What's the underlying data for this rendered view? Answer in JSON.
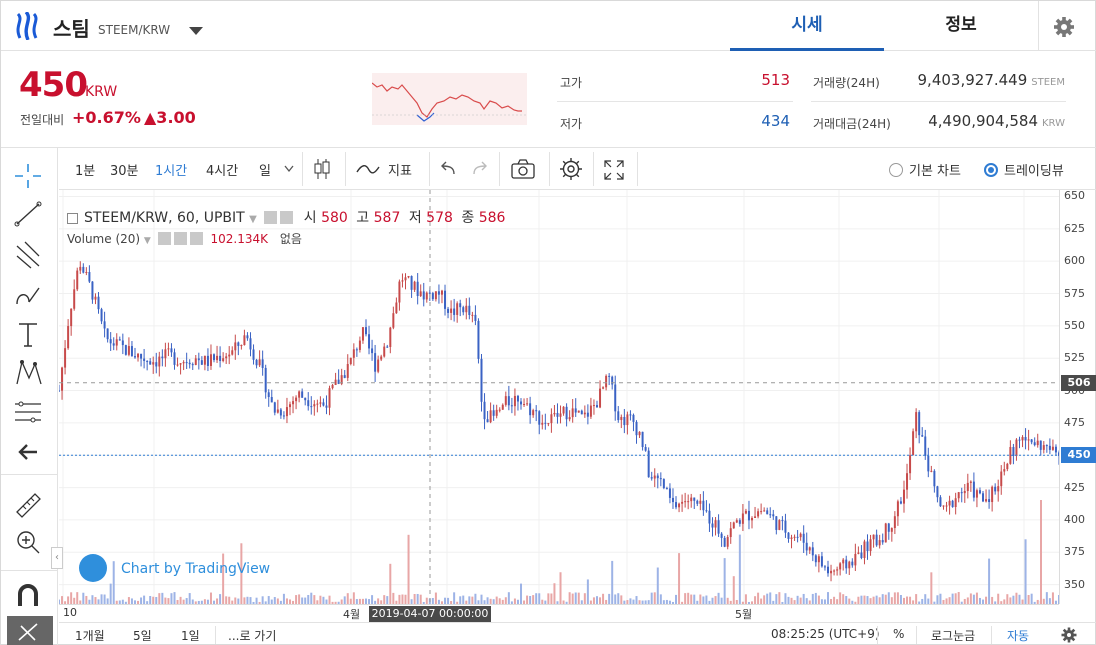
{
  "header": {
    "coin_name": "스팀",
    "pair": "STEEM/KRW",
    "tabs": [
      {
        "label": "시세",
        "active": true
      },
      {
        "label": "정보",
        "active": false
      }
    ]
  },
  "summary": {
    "price": "450",
    "price_unit": "KRW",
    "change_label": "전일대비",
    "change_pct": "+0.67%",
    "change_abs": "▲3.00",
    "high_label": "고가",
    "high_value": "513",
    "low_label": "저가",
    "low_value": "434",
    "volume_label": "거래량(24H)",
    "volume_value": "9,403,927.449",
    "volume_unit": "STEEM",
    "amount_label": "거래대금(24H)",
    "amount_value": "4,490,904,584",
    "amount_unit": "KRW"
  },
  "toolbar": {
    "intervals": [
      {
        "label": "1분",
        "selected": false
      },
      {
        "label": "30분",
        "selected": false
      },
      {
        "label": "1시간",
        "selected": true
      },
      {
        "label": "4시간",
        "selected": false
      },
      {
        "label": "일",
        "selected": false
      }
    ],
    "indicator_label": "지표",
    "chart_mode_basic": "기본 차트",
    "chart_mode_tv": "트레이딩뷰",
    "chart_mode_selected": "트레이딩뷰"
  },
  "legend": {
    "symbol": "STEEM/KRW, 60, UPBIT",
    "open_label": "시",
    "open": "580",
    "high_label": "고",
    "high": "587",
    "low_label": "저",
    "low": "578",
    "close_label": "종",
    "close": "586",
    "volume_title": "Volume (20)",
    "volume_value": "102.134K",
    "volume_extra": "없음"
  },
  "watermark": "Chart by TradingView",
  "chart_data": {
    "type": "candlestick",
    "symbol": "STEEM/KRW",
    "interval": "60",
    "ylim": [
      335,
      655
    ],
    "yticks": [
      350,
      375,
      400,
      425,
      450,
      475,
      500,
      525,
      550,
      575,
      600,
      625,
      650
    ],
    "x_ticks": [
      "10",
      "4월",
      "5월"
    ],
    "crosshair_date": "2019-04-07 00:00:00",
    "price_line": 450,
    "crosshair_price": 506,
    "price_path": [
      [
        0,
        500
      ],
      [
        0.8,
        560
      ],
      [
        1.6,
        600
      ],
      [
        2.6,
        575
      ],
      [
        3.6,
        540
      ],
      [
        4.5,
        535
      ],
      [
        5.5,
        530
      ],
      [
        6.5,
        525
      ],
      [
        7.5,
        523
      ],
      [
        8.5,
        527
      ],
      [
        9.5,
        523
      ],
      [
        10.5,
        525
      ],
      [
        11.5,
        522
      ],
      [
        12.5,
        527
      ],
      [
        13.5,
        530
      ],
      [
        14.5,
        543
      ],
      [
        15.5,
        520
      ],
      [
        16,
        505
      ],
      [
        16.6,
        485
      ],
      [
        17.5,
        485
      ],
      [
        18.5,
        497
      ],
      [
        19.5,
        493
      ],
      [
        20.5,
        489
      ],
      [
        21.5,
        505
      ],
      [
        22.5,
        520
      ],
      [
        23.5,
        545
      ],
      [
        24.5,
        520
      ],
      [
        25.5,
        540
      ],
      [
        26.5,
        588
      ],
      [
        27.4,
        580
      ],
      [
        28.4,
        574
      ],
      [
        29.4,
        576
      ],
      [
        30.4,
        560
      ],
      [
        31.4,
        565
      ],
      [
        32.3,
        550
      ],
      [
        32.8,
        485
      ],
      [
        33.6,
        478
      ],
      [
        34.6,
        490
      ],
      [
        35.6,
        495
      ],
      [
        36.6,
        485
      ],
      [
        37.6,
        475
      ],
      [
        38.6,
        480
      ],
      [
        39.6,
        485
      ],
      [
        40.6,
        478
      ],
      [
        41.6,
        490
      ],
      [
        42.6,
        510
      ],
      [
        43.4,
        478
      ],
      [
        44.4,
        478
      ],
      [
        45.1,
        465
      ],
      [
        45.8,
        432
      ],
      [
        46.6,
        430
      ],
      [
        47.6,
        410
      ],
      [
        48.6,
        416
      ],
      [
        49.6,
        410
      ],
      [
        50.6,
        400
      ],
      [
        51.6,
        385
      ],
      [
        52.6,
        400
      ],
      [
        53.6,
        405
      ],
      [
        54.6,
        408
      ],
      [
        55.6,
        398
      ],
      [
        56.6,
        390
      ],
      [
        57.6,
        385
      ],
      [
        58.6,
        372
      ],
      [
        59.6,
        360
      ],
      [
        60.6,
        362
      ],
      [
        61.6,
        370
      ],
      [
        62.6,
        380
      ],
      [
        63.6,
        385
      ],
      [
        64.6,
        400
      ],
      [
        65.6,
        425
      ],
      [
        66.4,
        480
      ],
      [
        67.3,
        445
      ],
      [
        67.9,
        420
      ],
      [
        68.6,
        405
      ],
      [
        69.6,
        420
      ],
      [
        70.6,
        425
      ],
      [
        71.6,
        415
      ],
      [
        72.6,
        425
      ],
      [
        73.6,
        450
      ],
      [
        74.6,
        462
      ],
      [
        75.6,
        460
      ],
      [
        76.6,
        455
      ],
      [
        77.5,
        450
      ]
    ]
  }
}
